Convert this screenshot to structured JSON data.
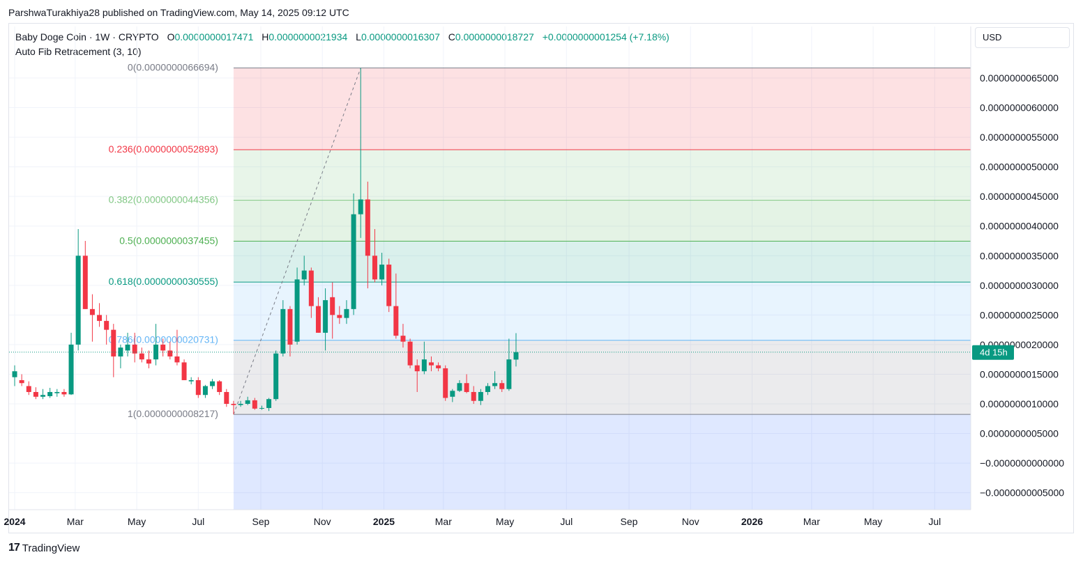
{
  "publisher": "ParshwaTurakhiya28 published on TradingView.com, May 14, 2025 09:12 UTC",
  "symbol": {
    "name": "Baby Doge Coin · 1W · CRYPTO",
    "open_label": "O",
    "open": "0.0000000017471",
    "high_label": "H",
    "high": "0.0000000021934",
    "low_label": "L",
    "low": "0.0000000016307",
    "close_label": "C",
    "close": "0.0000000018727",
    "change": "+0.0000000001254 (+7.18%)"
  },
  "indicator": "Auto Fib Retracement (3, 10)",
  "currency": "USD",
  "countdown": "4d 15h",
  "footer": {
    "logo_mark": "17",
    "logo_text": "TradingView"
  },
  "colors": {
    "up": "#089981",
    "down": "#f23645",
    "fib_0_236": "#f23645",
    "fib_0_382": "#81c784",
    "fib_0_5": "#4caf50",
    "fib_0_618": "#089981",
    "fib_0_786": "#64b5f6",
    "fib_1": "#787b86"
  },
  "chart_data": {
    "type": "candlestick",
    "y_axis": {
      "ticks": [
        "0.0000000065000",
        "0.0000000060000",
        "0.0000000055000",
        "0.0000000050000",
        "0.0000000045000",
        "0.0000000040000",
        "0.0000000035000",
        "0.0000000030000",
        "0.0000000025000",
        "0.0000000020000",
        "0.0000000015000",
        "0.0000000010000",
        "0.0000000005000",
        "−0.0000000000000",
        "−0.0000000005000"
      ],
      "tick_values": [
        6.5,
        6.0,
        5.5,
        5.0,
        4.5,
        4.0,
        3.5,
        3.0,
        2.5,
        2.0,
        1.5,
        1.0,
        0.5,
        0.0,
        -0.5
      ],
      "unit_scale": 1e-09,
      "range": [
        -0.75,
        7.5
      ]
    },
    "x_axis": {
      "labels": [
        "2024",
        "Mar",
        "May",
        "Jul",
        "Sep",
        "Nov",
        "2025",
        "Mar",
        "May",
        "Jul",
        "Sep",
        "Nov",
        "2026",
        "Mar",
        "May",
        "Jul"
      ],
      "dates": [
        "2024-01-01",
        "2024-03-01",
        "2024-05-01",
        "2024-07-01",
        "2024-09-01",
        "2024-11-01",
        "2025-01-01",
        "2025-03-01",
        "2025-05-01",
        "2025-07-01",
        "2025-09-01",
        "2025-11-01",
        "2026-01-01",
        "2026-03-01",
        "2026-05-01",
        "2026-07-01"
      ]
    },
    "fib_levels": [
      {
        "ratio": 0,
        "label": "0(0.0000000066694)",
        "value": 6.6694
      },
      {
        "ratio": 0.236,
        "label": "0.236(0.0000000052893)",
        "value": 5.2893
      },
      {
        "ratio": 0.382,
        "label": "0.382(0.0000000044356)",
        "value": 4.4356
      },
      {
        "ratio": 0.5,
        "label": "0.5(0.0000000037455)",
        "value": 3.7455
      },
      {
        "ratio": 0.618,
        "label": "0.618(0.0000000030555)",
        "value": 3.0555
      },
      {
        "ratio": 0.786,
        "label": "0.786(0.0000000020731)",
        "value": 2.0731
      },
      {
        "ratio": 1,
        "label": "1(0.0000000008217)",
        "value": 0.8217
      }
    ],
    "fib_start_date": "2024-08-05",
    "fib_end_date": "2024-12-09",
    "last_price": 1.8727,
    "candles": [
      {
        "date": "2024-01-01",
        "o": 1.45,
        "h": 1.65,
        "l": 1.3,
        "c": 1.55
      },
      {
        "date": "2024-01-08",
        "o": 1.4,
        "h": 1.5,
        "l": 1.3,
        "c": 1.35
      },
      {
        "date": "2024-01-15",
        "o": 1.3,
        "h": 1.38,
        "l": 1.15,
        "c": 1.2
      },
      {
        "date": "2024-01-22",
        "o": 1.2,
        "h": 1.28,
        "l": 1.08,
        "c": 1.12
      },
      {
        "date": "2024-01-29",
        "o": 1.12,
        "h": 1.25,
        "l": 1.08,
        "c": 1.15
      },
      {
        "date": "2024-02-05",
        "o": 1.13,
        "h": 1.27,
        "l": 1.1,
        "c": 1.2
      },
      {
        "date": "2024-02-12",
        "o": 1.18,
        "h": 1.25,
        "l": 1.12,
        "c": 1.2
      },
      {
        "date": "2024-02-19",
        "o": 1.2,
        "h": 1.25,
        "l": 1.12,
        "c": 1.16
      },
      {
        "date": "2024-02-26",
        "o": 1.16,
        "h": 2.2,
        "l": 1.15,
        "c": 2.0
      },
      {
        "date": "2024-03-04",
        "o": 2.0,
        "h": 3.95,
        "l": 1.9,
        "c": 3.5
      },
      {
        "date": "2024-03-11",
        "o": 3.5,
        "h": 3.75,
        "l": 2.6,
        "c": 2.6
      },
      {
        "date": "2024-03-18",
        "o": 2.6,
        "h": 2.85,
        "l": 2.05,
        "c": 2.5
      },
      {
        "date": "2024-03-25",
        "o": 2.5,
        "h": 2.7,
        "l": 2.3,
        "c": 2.4
      },
      {
        "date": "2024-04-01",
        "o": 2.4,
        "h": 2.5,
        "l": 2.0,
        "c": 2.25
      },
      {
        "date": "2024-04-08",
        "o": 2.25,
        "h": 2.35,
        "l": 1.45,
        "c": 1.8
      },
      {
        "date": "2024-04-15",
        "o": 1.8,
        "h": 2.0,
        "l": 1.6,
        "c": 1.95
      },
      {
        "date": "2024-04-22",
        "o": 1.9,
        "h": 2.2,
        "l": 1.8,
        "c": 2.0
      },
      {
        "date": "2024-04-29",
        "o": 2.0,
        "h": 2.2,
        "l": 1.7,
        "c": 1.85
      },
      {
        "date": "2024-05-06",
        "o": 1.85,
        "h": 1.95,
        "l": 1.7,
        "c": 1.75
      },
      {
        "date": "2024-05-13",
        "o": 1.75,
        "h": 1.9,
        "l": 1.6,
        "c": 1.68
      },
      {
        "date": "2024-05-20",
        "o": 1.75,
        "h": 2.35,
        "l": 1.65,
        "c": 2.0
      },
      {
        "date": "2024-05-27",
        "o": 2.0,
        "h": 2.1,
        "l": 1.8,
        "c": 1.9
      },
      {
        "date": "2024-06-03",
        "o": 1.9,
        "h": 2.05,
        "l": 1.75,
        "c": 1.8
      },
      {
        "date": "2024-06-10",
        "o": 1.8,
        "h": 2.25,
        "l": 1.65,
        "c": 1.7
      },
      {
        "date": "2024-06-17",
        "o": 1.7,
        "h": 1.75,
        "l": 1.4,
        "c": 1.4
      },
      {
        "date": "2024-06-24",
        "o": 1.38,
        "h": 1.45,
        "l": 1.33,
        "c": 1.4
      },
      {
        "date": "2024-07-01",
        "o": 1.4,
        "h": 1.45,
        "l": 1.1,
        "c": 1.15
      },
      {
        "date": "2024-07-08",
        "o": 1.15,
        "h": 1.32,
        "l": 1.1,
        "c": 1.3
      },
      {
        "date": "2024-07-15",
        "o": 1.3,
        "h": 1.42,
        "l": 1.25,
        "c": 1.38
      },
      {
        "date": "2024-07-22",
        "o": 1.38,
        "h": 1.4,
        "l": 1.15,
        "c": 1.2
      },
      {
        "date": "2024-07-29",
        "o": 1.2,
        "h": 1.25,
        "l": 0.95,
        "c": 1.0
      },
      {
        "date": "2024-08-05",
        "o": 1.0,
        "h": 1.05,
        "l": 0.8217,
        "c": 0.98
      },
      {
        "date": "2024-08-12",
        "o": 0.98,
        "h": 1.05,
        "l": 0.95,
        "c": 1.0
      },
      {
        "date": "2024-08-19",
        "o": 1.0,
        "h": 1.12,
        "l": 0.98,
        "c": 1.06
      },
      {
        "date": "2024-08-26",
        "o": 1.06,
        "h": 1.1,
        "l": 0.9,
        "c": 0.92
      },
      {
        "date": "2024-09-02",
        "o": 0.92,
        "h": 0.97,
        "l": 0.9,
        "c": 0.93
      },
      {
        "date": "2024-09-09",
        "o": 0.93,
        "h": 1.1,
        "l": 0.88,
        "c": 1.08
      },
      {
        "date": "2024-09-16",
        "o": 1.08,
        "h": 1.9,
        "l": 1.05,
        "c": 1.85
      },
      {
        "date": "2024-09-23",
        "o": 1.85,
        "h": 2.75,
        "l": 1.8,
        "c": 2.6
      },
      {
        "date": "2024-09-30",
        "o": 2.6,
        "h": 2.65,
        "l": 1.8,
        "c": 2.0
      },
      {
        "date": "2024-10-07",
        "o": 2.05,
        "h": 3.3,
        "l": 2.0,
        "c": 3.1
      },
      {
        "date": "2024-10-14",
        "o": 3.1,
        "h": 3.5,
        "l": 3.0,
        "c": 3.25
      },
      {
        "date": "2024-10-21",
        "o": 3.25,
        "h": 3.3,
        "l": 2.45,
        "c": 2.65
      },
      {
        "date": "2024-10-28",
        "o": 2.65,
        "h": 2.8,
        "l": 2.2,
        "c": 2.2
      },
      {
        "date": "2024-11-04",
        "o": 2.2,
        "h": 2.95,
        "l": 1.9,
        "c": 2.75
      },
      {
        "date": "2024-11-11",
        "o": 2.8,
        "h": 3.05,
        "l": 2.1,
        "c": 2.5
      },
      {
        "date": "2024-11-18",
        "o": 2.5,
        "h": 2.65,
        "l": 2.35,
        "c": 2.45
      },
      {
        "date": "2024-11-25",
        "o": 2.45,
        "h": 2.75,
        "l": 2.35,
        "c": 2.6
      },
      {
        "date": "2024-12-02",
        "o": 2.6,
        "h": 4.55,
        "l": 2.5,
        "c": 4.2
      },
      {
        "date": "2024-12-09",
        "o": 4.2,
        "h": 6.6694,
        "l": 3.8,
        "c": 4.45
      },
      {
        "date": "2024-12-16",
        "o": 4.45,
        "h": 4.75,
        "l": 2.95,
        "c": 3.5
      },
      {
        "date": "2024-12-23",
        "o": 3.5,
        "h": 3.95,
        "l": 3.05,
        "c": 3.1
      },
      {
        "date": "2024-12-30",
        "o": 3.1,
        "h": 3.55,
        "l": 3.0,
        "c": 3.35
      },
      {
        "date": "2025-01-06",
        "o": 3.35,
        "h": 3.45,
        "l": 2.55,
        "c": 2.65
      },
      {
        "date": "2025-01-13",
        "o": 2.65,
        "h": 3.2,
        "l": 2.1,
        "c": 2.15
      },
      {
        "date": "2025-01-20",
        "o": 2.15,
        "h": 2.35,
        "l": 1.95,
        "c": 2.05
      },
      {
        "date": "2025-01-27",
        "o": 2.05,
        "h": 2.1,
        "l": 1.6,
        "c": 1.65
      },
      {
        "date": "2025-02-03",
        "o": 1.65,
        "h": 1.75,
        "l": 1.2,
        "c": 1.55
      },
      {
        "date": "2025-02-10",
        "o": 1.55,
        "h": 2.05,
        "l": 1.5,
        "c": 1.75
      },
      {
        "date": "2025-02-17",
        "o": 1.7,
        "h": 1.8,
        "l": 1.55,
        "c": 1.65
      },
      {
        "date": "2025-02-24",
        "o": 1.65,
        "h": 1.7,
        "l": 1.55,
        "c": 1.6
      },
      {
        "date": "2025-03-03",
        "o": 1.6,
        "h": 1.65,
        "l": 1.05,
        "c": 1.1
      },
      {
        "date": "2025-03-10",
        "o": 1.12,
        "h": 1.25,
        "l": 1.03,
        "c": 1.22
      },
      {
        "date": "2025-03-17",
        "o": 1.22,
        "h": 1.4,
        "l": 1.2,
        "c": 1.35
      },
      {
        "date": "2025-03-24",
        "o": 1.35,
        "h": 1.5,
        "l": 1.18,
        "c": 1.2
      },
      {
        "date": "2025-03-31",
        "o": 1.2,
        "h": 1.3,
        "l": 1.0,
        "c": 1.05
      },
      {
        "date": "2025-04-07",
        "o": 1.05,
        "h": 1.25,
        "l": 0.98,
        "c": 1.2
      },
      {
        "date": "2025-04-14",
        "o": 1.2,
        "h": 1.35,
        "l": 1.15,
        "c": 1.3
      },
      {
        "date": "2025-04-21",
        "o": 1.3,
        "h": 1.55,
        "l": 1.25,
        "c": 1.35
      },
      {
        "date": "2025-04-28",
        "o": 1.35,
        "h": 1.4,
        "l": 1.2,
        "c": 1.25
      },
      {
        "date": "2025-05-05",
        "o": 1.25,
        "h": 2.1,
        "l": 1.22,
        "c": 1.75
      },
      {
        "date": "2025-05-12",
        "o": 1.7471,
        "h": 2.1934,
        "l": 1.6307,
        "c": 1.8727
      }
    ]
  }
}
